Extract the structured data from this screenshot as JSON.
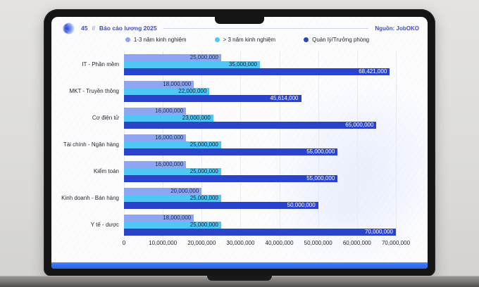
{
  "header": {
    "page_number": "45",
    "separator": "//",
    "title": "Báo cáo lương 2025",
    "source": "Nguồn: JobOKO"
  },
  "colors": {
    "accent_blue": "#3e4bc9",
    "footer_bar": "#2e6ef3",
    "grid_line": "#e7eaf2"
  },
  "chart_data": {
    "type": "bar",
    "orientation": "horizontal",
    "title": "Báo cáo lương 2025",
    "xlabel": "",
    "ylabel": "",
    "xlim": [
      0,
      70000000
    ],
    "grid": true,
    "legend_position": "top",
    "categories": [
      "IT - Phần mềm",
      "MKT - Truyền thông",
      "Cơ điện tử",
      "Tài chính - Ngân hàng",
      "Kiểm toán",
      "Kinh doanh - Bán hàng",
      "Y tế - dược"
    ],
    "series": [
      {
        "name": "1-3 năm kinh nghiệm",
        "color": "#8ea6f1",
        "label_color": "#1e2a4a",
        "values": [
          25000000,
          18000000,
          16000000,
          16000000,
          16000000,
          20000000,
          18000000
        ]
      },
      {
        "name": "> 3 năm kinh nghiệm",
        "color": "#4fc6f3",
        "label_color": "#122033",
        "values": [
          35000000,
          22000000,
          23000000,
          25000000,
          25000000,
          25000000,
          25000000
        ]
      },
      {
        "name": "Quản lý/Trưởng phòng",
        "color": "#2a43cc",
        "label_color": "#ffffff",
        "values": [
          68421000,
          45614000,
          65000000,
          55000000,
          55000000,
          50000000,
          70000000
        ]
      }
    ],
    "x_ticks": [
      "0",
      "10,000,000",
      "20,000,000",
      "30,000,000",
      "40,000,000",
      "50,000,000",
      "60,000,000",
      "70,000,000"
    ]
  }
}
